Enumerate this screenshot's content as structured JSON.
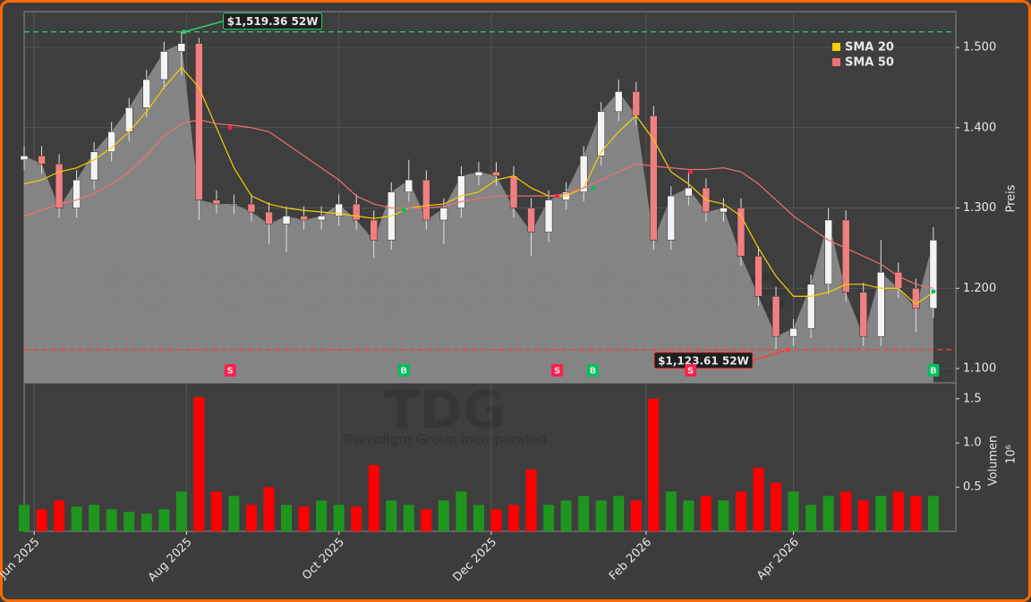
{
  "chart_data": {
    "type": "candlestick",
    "watermark": "forexsignale.trade",
    "ticker": "TDG",
    "company": "Transdigm Group Incorporated",
    "x": [
      0,
      7,
      14,
      21,
      28,
      35,
      42,
      49,
      56,
      63,
      70,
      77,
      84,
      91,
      98,
      105,
      112,
      119,
      126,
      133,
      140,
      147,
      154,
      161,
      168,
      175,
      182,
      189,
      196,
      203,
      210,
      217,
      224,
      231,
      238,
      245,
      252,
      259,
      266,
      273,
      280,
      287,
      294,
      301,
      308,
      315,
      322,
      329,
      336,
      343,
      350,
      357,
      364
    ],
    "xlim": [
      0,
      373
    ],
    "xticks": [
      {
        "value": 4,
        "label": "Jun 2025"
      },
      {
        "value": 65,
        "label": "Aug 2025"
      },
      {
        "value": 126,
        "label": "Oct 2025"
      },
      {
        "value": 187,
        "label": "Dec 2025"
      },
      {
        "value": 249,
        "label": "Feb 2026"
      },
      {
        "value": 308,
        "label": "Apr 2026"
      }
    ],
    "open": [
      1.36,
      1.365,
      1.355,
      1.3,
      1.335,
      1.37,
      1.395,
      1.425,
      1.46,
      1.495,
      1.505,
      1.31,
      1.305,
      1.305,
      1.295,
      1.28,
      1.29,
      1.285,
      1.29,
      1.305,
      1.285,
      1.26,
      1.32,
      1.335,
      1.285,
      1.3,
      1.34,
      1.345,
      1.34,
      1.3,
      1.27,
      1.31,
      1.32,
      1.365,
      1.42,
      1.445,
      1.415,
      1.26,
      1.315,
      1.325,
      1.295,
      1.3,
      1.24,
      1.19,
      1.14,
      1.15,
      1.205,
      1.285,
      1.195,
      1.14,
      1.22,
      1.2,
      1.175
    ],
    "high": [
      1.377,
      1.377,
      1.367,
      1.347,
      1.382,
      1.407,
      1.437,
      1.472,
      1.507,
      1.519,
      1.512,
      1.322,
      1.317,
      1.317,
      1.307,
      1.302,
      1.302,
      1.302,
      1.317,
      1.317,
      1.297,
      1.332,
      1.36,
      1.347,
      1.312,
      1.352,
      1.357,
      1.357,
      1.352,
      1.312,
      1.322,
      1.332,
      1.377,
      1.432,
      1.46,
      1.457,
      1.427,
      1.327,
      1.345,
      1.337,
      1.312,
      1.312,
      1.252,
      1.202,
      1.162,
      1.217,
      1.3,
      1.297,
      1.207,
      1.26,
      1.232,
      1.212,
      1.276
    ],
    "low": [
      1.348,
      1.343,
      1.288,
      1.288,
      1.323,
      1.358,
      1.383,
      1.413,
      1.448,
      1.465,
      1.285,
      1.293,
      1.293,
      1.283,
      1.255,
      1.245,
      1.273,
      1.273,
      1.278,
      1.273,
      1.238,
      1.248,
      1.308,
      1.273,
      1.255,
      1.288,
      1.328,
      1.328,
      1.288,
      1.24,
      1.258,
      1.298,
      1.308,
      1.353,
      1.408,
      1.403,
      1.248,
      1.248,
      1.303,
      1.283,
      1.283,
      1.228,
      1.178,
      1.124,
      1.128,
      1.138,
      1.193,
      1.183,
      1.128,
      1.128,
      1.188,
      1.145,
      1.163
    ],
    "close": [
      1.365,
      1.355,
      1.3,
      1.335,
      1.37,
      1.395,
      1.425,
      1.46,
      1.495,
      1.505,
      1.31,
      1.305,
      1.305,
      1.295,
      1.28,
      1.29,
      1.285,
      1.29,
      1.305,
      1.285,
      1.26,
      1.32,
      1.335,
      1.285,
      1.3,
      1.34,
      1.345,
      1.34,
      1.3,
      1.27,
      1.31,
      1.32,
      1.365,
      1.42,
      1.445,
      1.415,
      1.26,
      1.315,
      1.325,
      1.295,
      1.3,
      1.24,
      1.19,
      1.14,
      1.15,
      1.205,
      1.285,
      1.195,
      1.14,
      1.22,
      1.2,
      1.175,
      1.26
    ],
    "up_color": "#f4f4f4",
    "down_color": "#f08080",
    "area_color": "#8c8c8c",
    "series": [
      {
        "name": "SMA 20",
        "color": "#f5d000",
        "values": [
          1.33,
          1.335,
          1.345,
          1.35,
          1.36,
          1.375,
          1.395,
          1.42,
          1.45,
          1.475,
          1.45,
          1.4,
          1.35,
          1.315,
          1.305,
          1.3,
          1.297,
          1.295,
          1.293,
          1.29,
          1.287,
          1.29,
          1.3,
          1.303,
          1.305,
          1.315,
          1.32,
          1.335,
          1.34,
          1.325,
          1.315,
          1.315,
          1.325,
          1.37,
          1.395,
          1.415,
          1.385,
          1.345,
          1.33,
          1.31,
          1.305,
          1.29,
          1.25,
          1.215,
          1.19,
          1.19,
          1.195,
          1.205,
          1.205,
          1.2,
          1.2,
          1.18,
          1.195
        ]
      },
      {
        "name": "SMA 50",
        "color": "#f07070",
        "values": [
          1.29,
          1.297,
          1.305,
          1.31,
          1.318,
          1.33,
          1.345,
          1.365,
          1.39,
          1.405,
          1.41,
          1.405,
          1.403,
          1.4,
          1.395,
          1.38,
          1.365,
          1.35,
          1.335,
          1.315,
          1.305,
          1.3,
          1.3,
          1.3,
          1.302,
          1.308,
          1.312,
          1.315,
          1.315,
          1.315,
          1.315,
          1.318,
          1.325,
          1.335,
          1.345,
          1.355,
          1.352,
          1.35,
          1.348,
          1.348,
          1.35,
          1.345,
          1.33,
          1.31,
          1.29,
          1.275,
          1.26,
          1.25,
          1.24,
          1.23,
          1.215,
          1.205,
          1.2
        ]
      }
    ],
    "legend": "upper right",
    "grid": true,
    "ylabel": "Preis",
    "ylim": [
      1.0822,
      1.5446
    ],
    "yticks": [
      {
        "value": 1.1,
        "label": "1.100"
      },
      {
        "value": 1.2,
        "label": "1.200"
      },
      {
        "value": 1.3,
        "label": "1.300"
      },
      {
        "value": 1.4,
        "label": "1.400"
      },
      {
        "value": 1.5,
        "label": "1.500"
      }
    ],
    "annotations": [
      {
        "text": "$1,519.36 52W",
        "value": 1.51936,
        "x": 64,
        "color": "#2ecc71"
      },
      {
        "text": "$1,123.61 52W",
        "value": 1.12361,
        "x": 306,
        "color": "#ff3b3b"
      }
    ],
    "signals": [
      {
        "label": "S",
        "x": 82.5,
        "value": 1.4,
        "color": "#ff1f4f"
      },
      {
        "label": "B",
        "x": 152,
        "value": 1.298,
        "color": "#00c060"
      },
      {
        "label": "S",
        "x": 213.4,
        "value": 1.315,
        "color": "#ff1f4f"
      },
      {
        "label": "B",
        "x": 227.7,
        "value": 1.325,
        "color": "#00c060"
      },
      {
        "label": "S",
        "x": 266.8,
        "value": 1.345,
        "color": "#ff1f4f"
      },
      {
        "label": "B",
        "x": 364,
        "value": 1.196,
        "color": "#00c060"
      }
    ],
    "volume": {
      "ylabel": "Volumen",
      "scale_label": "10⁶",
      "values": [
        0.3,
        0.25,
        0.35,
        0.28,
        0.3,
        0.25,
        0.22,
        0.2,
        0.25,
        0.45,
        1.52,
        0.45,
        0.4,
        0.3,
        0.5,
        0.3,
        0.28,
        0.35,
        0.3,
        0.28,
        0.75,
        0.35,
        0.3,
        0.25,
        0.35,
        0.45,
        0.3,
        0.25,
        0.3,
        0.7,
        0.3,
        0.35,
        0.4,
        0.35,
        0.4,
        0.35,
        1.5,
        0.45,
        0.35,
        0.4,
        0.35,
        0.45,
        0.72,
        0.55,
        0.45,
        0.3,
        0.4,
        0.45,
        0.35,
        0.4,
        0.45,
        0.4,
        0.4
      ],
      "up_color": "#1e961e",
      "down_color": "#ff0000",
      "ylim": [
        0,
        1.68
      ],
      "yticks": [
        0.5,
        {
          "value": 1,
          "label": "1.0"
        },
        1.5
      ]
    }
  }
}
